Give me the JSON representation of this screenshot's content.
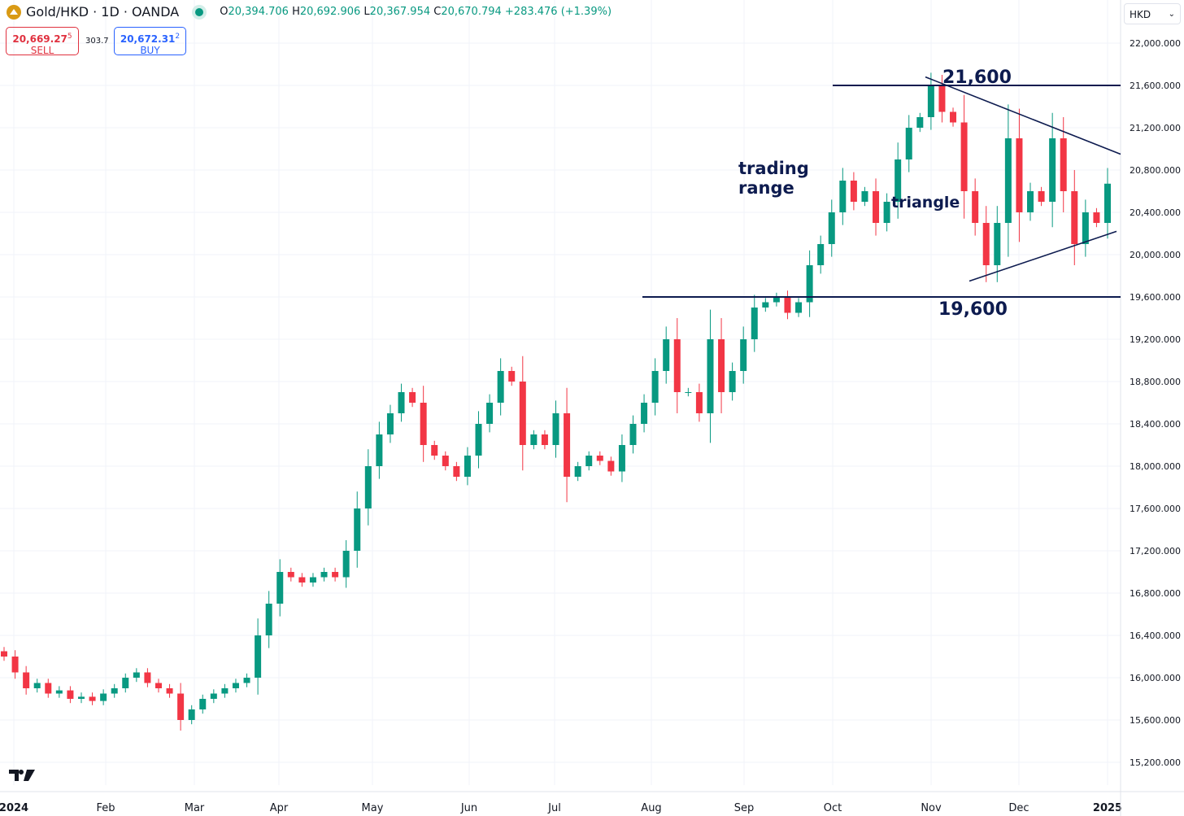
{
  "header": {
    "symbol": "Gold/HKD · 1D · OANDA",
    "o_label": "O",
    "o": "20,394.706",
    "h_label": "H",
    "h": "20,692.906",
    "l_label": "L",
    "l": "20,367.954",
    "c_label": "C",
    "c": "20,670.794",
    "change": "+283.476 (+1.39%)"
  },
  "trade": {
    "sell_price": "20,669.27",
    "sell_sup": "5",
    "sell_label": "SELL",
    "spread": "303.7",
    "buy_price": "20,672.31",
    "buy_sup": "2",
    "buy_label": "BUY"
  },
  "currency": "HKD",
  "colors": {
    "up": "#089981",
    "down": "#f23645",
    "annotation": "#0d1b4f",
    "grid": "#f0f3fa"
  },
  "chart_data": {
    "type": "candlestick",
    "title": "Gold/HKD · 1D · OANDA",
    "ylim": [
      15000,
      22100
    ],
    "y_ticks": [
      22000,
      21600,
      21200,
      20800,
      20400,
      20000,
      19600,
      19200,
      18800,
      18400,
      18000,
      17600,
      17200,
      16800,
      16400,
      16000,
      15600,
      15200
    ],
    "y_tick_labels": [
      "22,000.000",
      "21,600.000",
      "21,200.000",
      "20,800.000",
      "20,400.000",
      "20,000.000",
      "19,600.000",
      "19,200.000",
      "18,800.000",
      "18,400.000",
      "18,000.000",
      "17,600.000",
      "17,200.000",
      "16,800.000",
      "16,400.000",
      "16,000.000",
      "15,600.000",
      "15,200.000"
    ],
    "x_tick_labels": [
      "2024",
      "Feb",
      "Mar",
      "Apr",
      "May",
      "Jun",
      "Jul",
      "Aug",
      "Sep",
      "Oct",
      "Nov",
      "Dec",
      "2025"
    ],
    "x_tick_positions_month_index": [
      0,
      1,
      2,
      3,
      4,
      5,
      6,
      7,
      8,
      9,
      10,
      11,
      12
    ],
    "start_open": 16250,
    "closes": [
      16200,
      16050,
      15900,
      15950,
      15850,
      15880,
      15800,
      15820,
      15780,
      15850,
      15900,
      16000,
      16050,
      15950,
      15900,
      15850,
      15600,
      15700,
      15800,
      15850,
      15900,
      15950,
      16000,
      16400,
      16700,
      17000,
      16950,
      16900,
      16950,
      17000,
      16950,
      17200,
      17600,
      18000,
      18300,
      18500,
      18700,
      18600,
      18200,
      18100,
      18000,
      17900,
      18100,
      18400,
      18600,
      18900,
      18800,
      18200,
      18300,
      18200,
      18500,
      17900,
      18000,
      18100,
      18050,
      17950,
      18200,
      18400,
      18600,
      18900,
      19200,
      18700,
      18700,
      18500,
      19200,
      18700,
      18900,
      19200,
      19500,
      19550,
      19600,
      19450,
      19550,
      19900,
      20100,
      20400,
      20700,
      20500,
      20600,
      20300,
      20500,
      20900,
      21200,
      21300,
      21600,
      21350,
      21250,
      20600,
      20300,
      19900,
      20300,
      21100,
      20400,
      20600,
      20500,
      21100,
      20600,
      20100,
      20400,
      20300,
      20671
    ],
    "annotations": {
      "resistance": {
        "value": 21600,
        "label": "21,600"
      },
      "support": {
        "value": 19600,
        "label": "19,600"
      },
      "trading_range_label": "trading range",
      "triangle_label": "triangle",
      "triangle_upper": {
        "from": 21680,
        "to": 20950
      },
      "triangle_lower": {
        "from": 19750,
        "to": 20220
      }
    }
  }
}
